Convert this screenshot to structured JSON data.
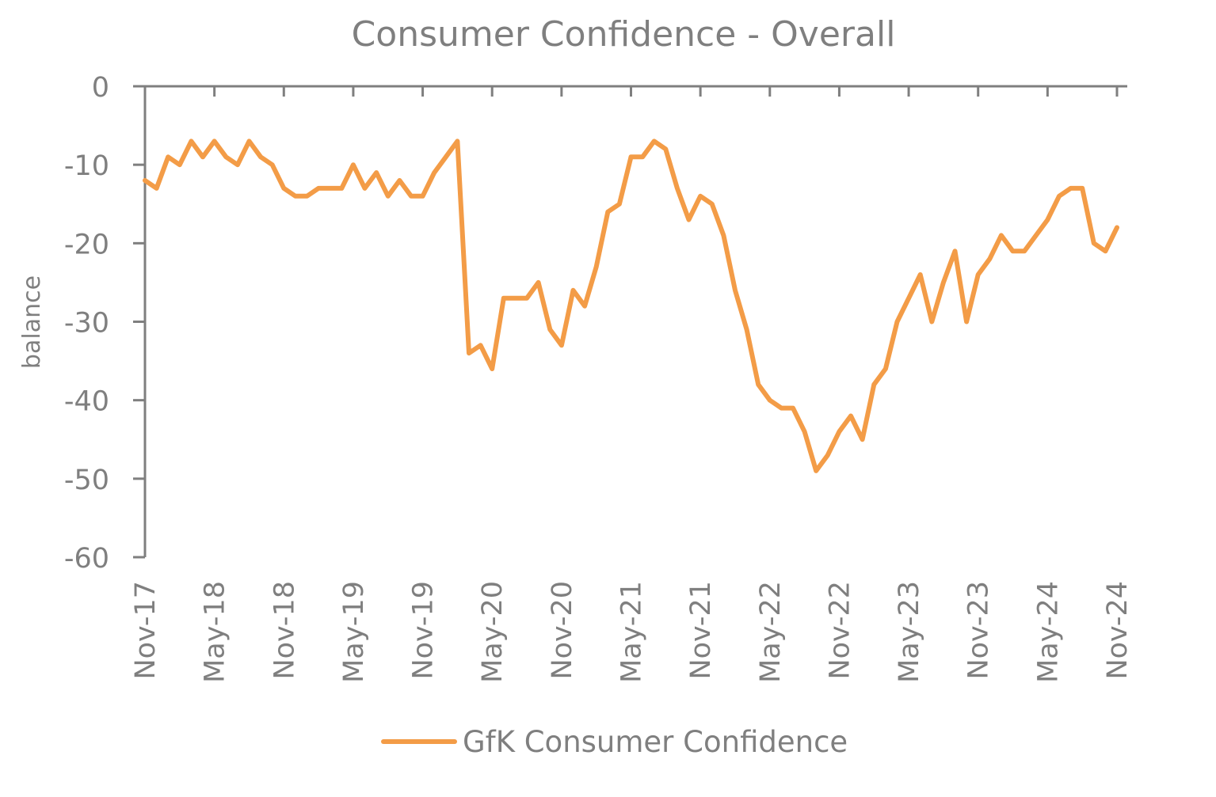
{
  "chart_data": {
    "type": "line",
    "title": "Consumer Confidence - Overall",
    "ylabel": "balance",
    "xlabel": "",
    "ylim": [
      -60,
      0
    ],
    "yticks": [
      0,
      -10,
      -20,
      -30,
      -40,
      -50,
      -60
    ],
    "xtick_labels": [
      "Nov-17",
      "May-18",
      "Nov-18",
      "May-19",
      "Nov-19",
      "May-20",
      "Nov-20",
      "May-21",
      "Nov-21",
      "May-22",
      "Nov-22",
      "May-23",
      "Nov-23",
      "May-24",
      "Nov-24"
    ],
    "x_start": "Nov-17",
    "x_end": "Nov-24",
    "grid": false,
    "legend_position": "bottom",
    "series": [
      {
        "name": "GfK Consumer Confidence",
        "color": "#f39c47",
        "values": [
          -12,
          -13,
          -9,
          -10,
          -7,
          -9,
          -7,
          -9,
          -10,
          -7,
          -9,
          -10,
          -13,
          -14,
          -14,
          -13,
          -13,
          -13,
          -10,
          -13,
          -11,
          -14,
          -12,
          -14,
          -14,
          -11,
          -9,
          -7,
          -34,
          -33,
          -36,
          -27,
          -27,
          -27,
          -25,
          -31,
          -33,
          -26,
          -28,
          -23,
          -16,
          -15,
          -9,
          -9,
          -7,
          -8,
          -13,
          -17,
          -14,
          -15,
          -19,
          -26,
          -31,
          -38,
          -40,
          -41,
          -41,
          -44,
          -49,
          -47,
          -44,
          -42,
          -45,
          -38,
          -36,
          -30,
          -27,
          -24,
          -30,
          -25,
          -21,
          -30,
          -24,
          -22,
          -19,
          -21,
          -21,
          -19,
          -17,
          -14,
          -13,
          -13,
          -20,
          -21,
          -18
        ]
      }
    ]
  }
}
